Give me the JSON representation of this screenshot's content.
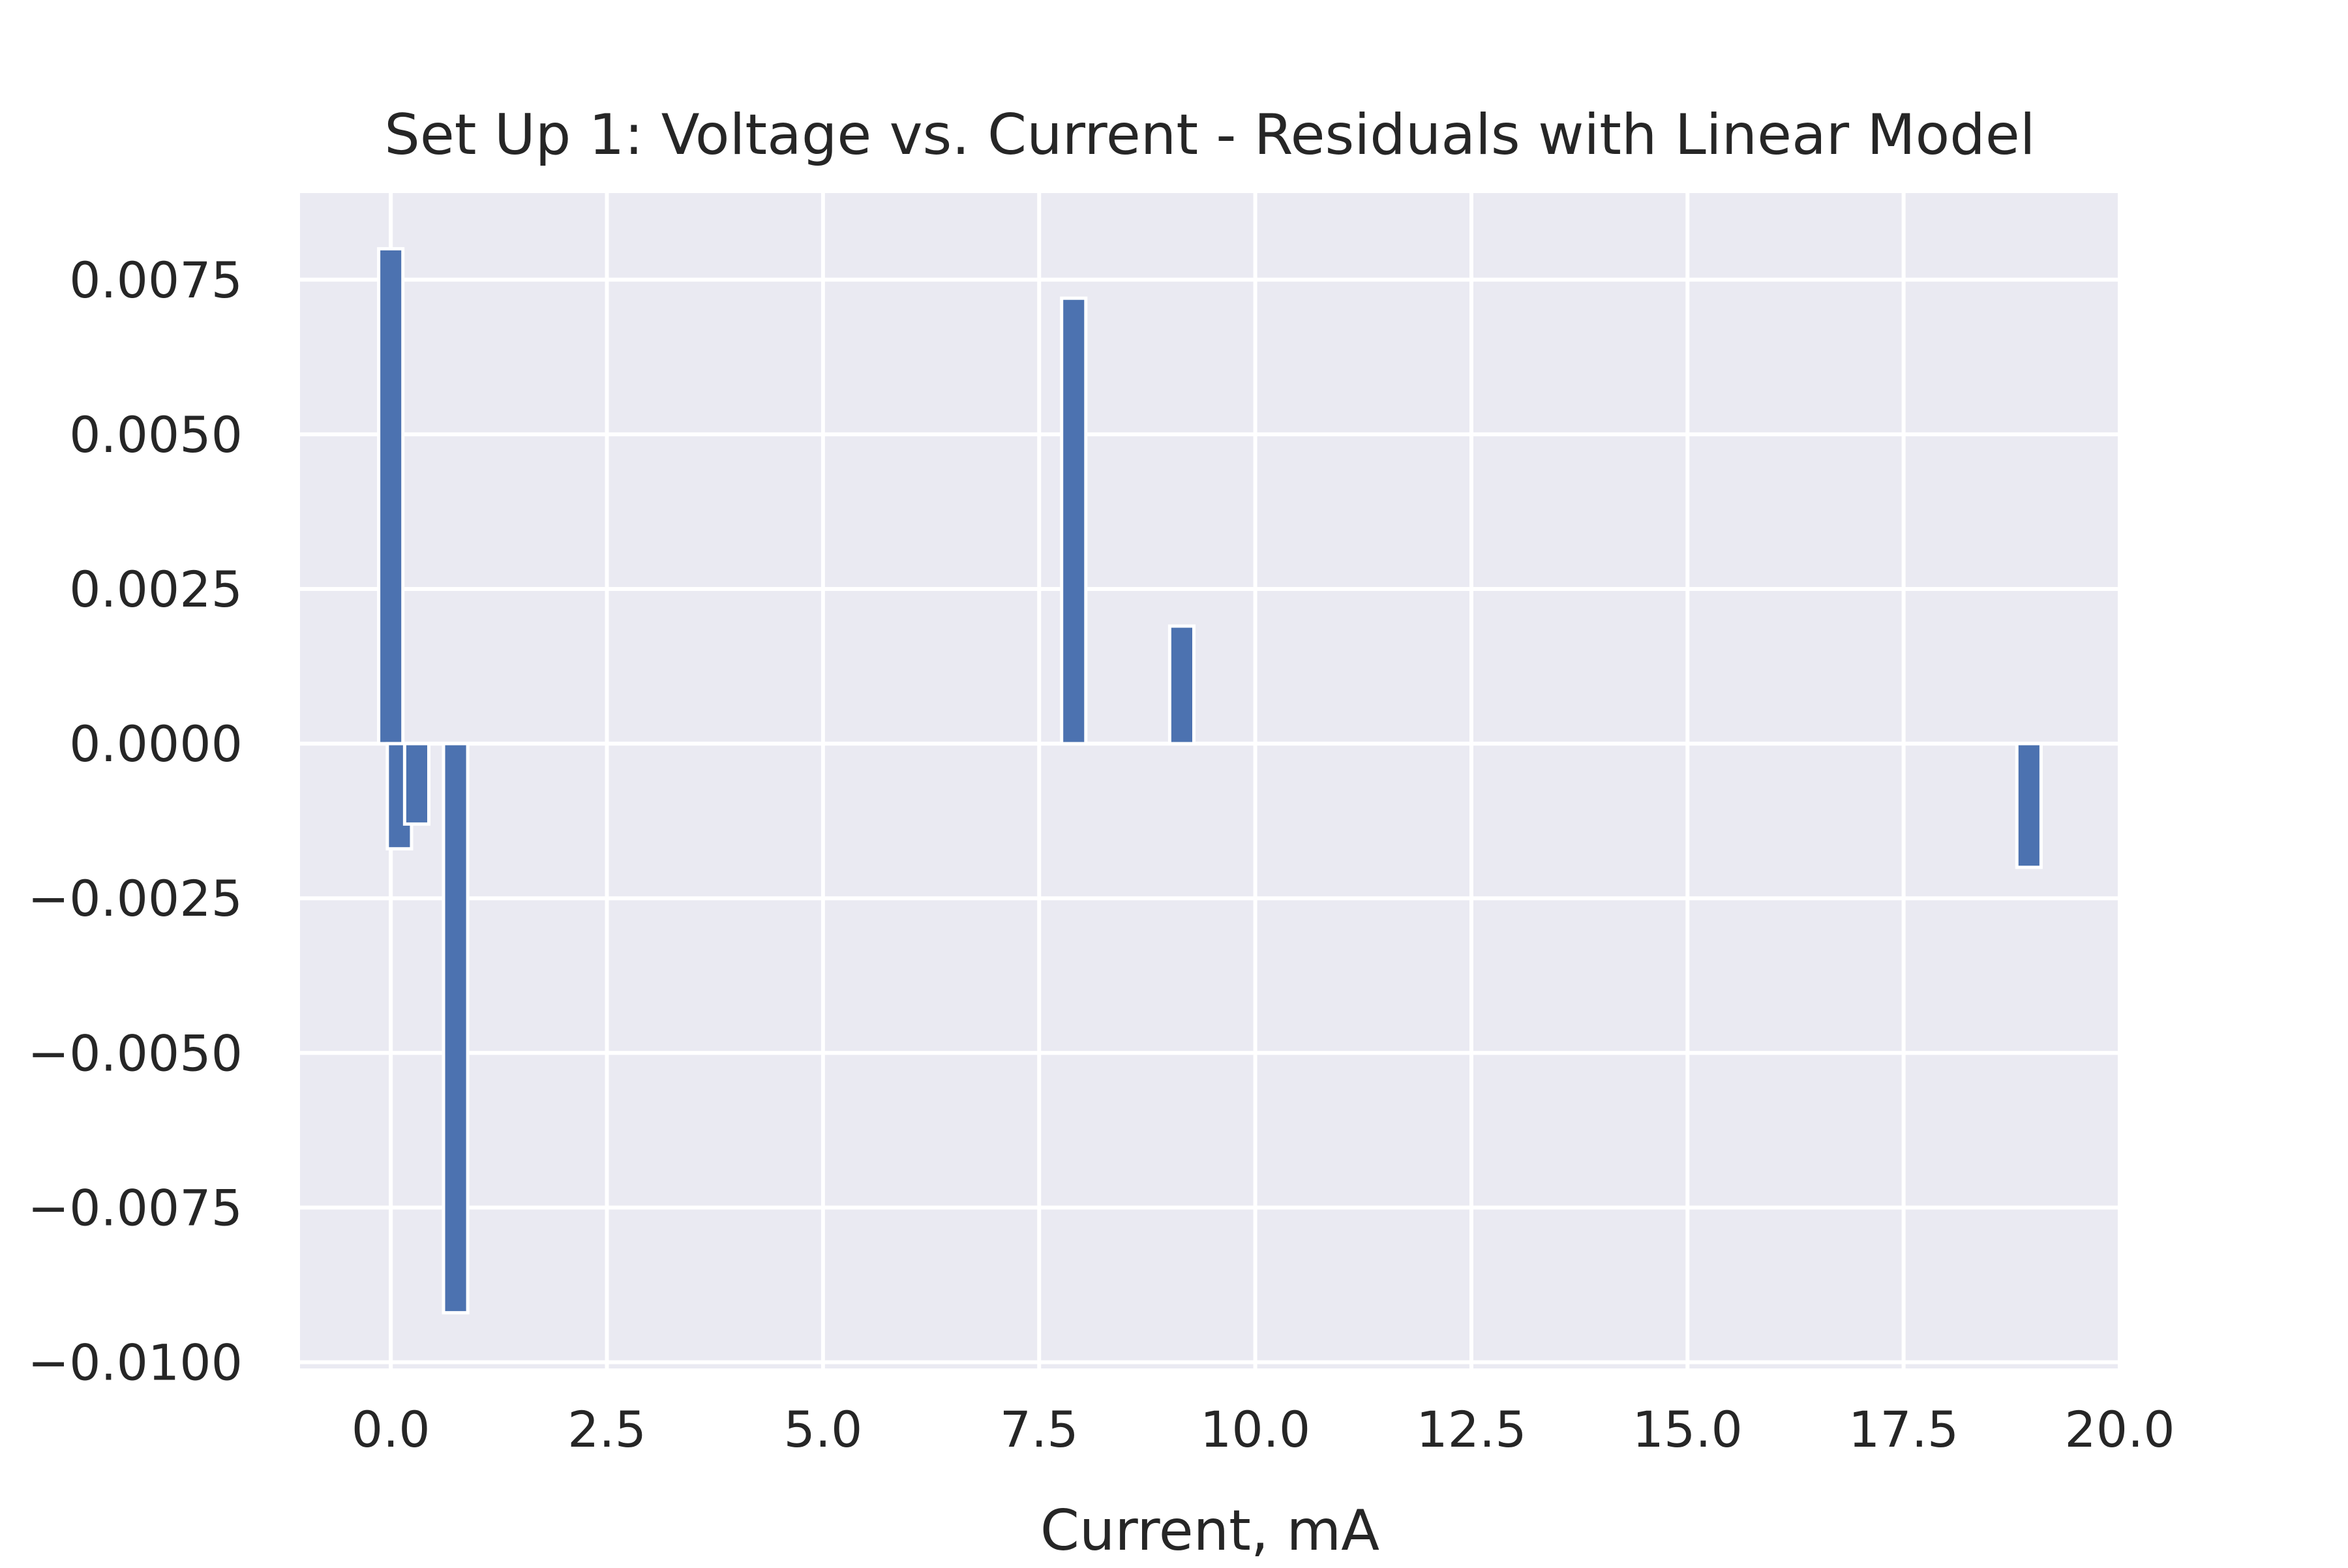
{
  "chart_data": {
    "type": "bar",
    "title": "Set Up 1: Voltage vs. Current - Residuals with Linear Model",
    "xlabel": "Current, mA",
    "ylabel": "",
    "xlim": [
      -1.05,
      20.0
    ],
    "ylim": [
      -0.0101,
      0.0089
    ],
    "xticks": [
      0.0,
      2.5,
      5.0,
      7.5,
      10.0,
      12.5,
      15.0,
      17.5,
      20.0
    ],
    "xtick_labels": [
      "0.0",
      "2.5",
      "5.0",
      "7.5",
      "10.0",
      "12.5",
      "15.0",
      "17.5",
      "20.0"
    ],
    "yticks": [
      0.0075,
      0.005,
      0.0025,
      0.0,
      -0.0025,
      -0.005,
      -0.0075,
      -0.01
    ],
    "ytick_labels": [
      "0.0075",
      "0.0050",
      "0.0025",
      "0.0000",
      "−0.0025",
      "−0.0050",
      "−0.0075",
      "−0.0100"
    ],
    "grid": true,
    "background_color": "#eaeaf2",
    "grid_color": "#ffffff",
    "bar_color": "#4c72b0",
    "bar_width": 0.28,
    "x": [
      0.0,
      0.1,
      0.3,
      0.75,
      7.9,
      9.15,
      18.95
    ],
    "values": [
      0.008,
      -0.0017,
      -0.0013,
      -0.0092,
      0.0072,
      0.0019,
      -0.002
    ]
  }
}
